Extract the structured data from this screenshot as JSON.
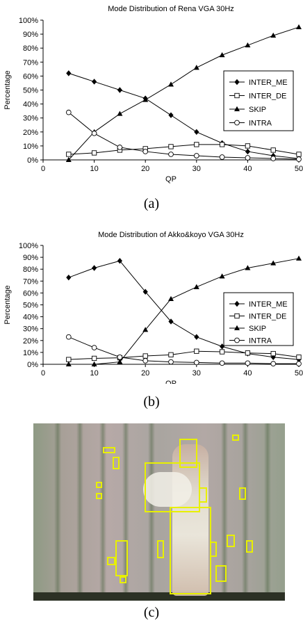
{
  "chart_data": [
    {
      "type": "line",
      "title": "Mode Distribution of Rena VGA 30Hz",
      "xlabel": "QP",
      "ylabel": "Percentage",
      "xlim": [
        0,
        50
      ],
      "ylim": [
        0,
        100
      ],
      "x_ticks": [
        "0",
        "10",
        "20",
        "30",
        "40",
        "50"
      ],
      "y_ticks": [
        "0%",
        "10%",
        "20%",
        "30%",
        "40%",
        "50%",
        "60%",
        "70%",
        "80%",
        "90%",
        "100%"
      ],
      "grid": false,
      "legend": "right",
      "x": [
        5,
        10,
        15,
        20,
        25,
        30,
        35,
        40,
        45,
        50
      ],
      "series": [
        {
          "name": "INTER_ME",
          "marker": "diamond-filled",
          "values": [
            62,
            56,
            50,
            44,
            32,
            20,
            12,
            6,
            3,
            1
          ]
        },
        {
          "name": "INTER_DE",
          "marker": "square-open",
          "values": [
            4,
            5,
            7,
            8,
            9.5,
            11,
            11,
            10,
            7,
            4
          ]
        },
        {
          "name": "SKIP",
          "marker": "triangle-filled",
          "values": [
            0,
            20,
            33,
            43,
            54,
            66,
            75,
            82,
            89,
            95
          ]
        },
        {
          "name": "INTRA",
          "marker": "circle-open",
          "values": [
            34,
            19,
            9,
            6,
            4,
            3,
            2,
            1.5,
            1,
            0.5
          ]
        }
      ]
    },
    {
      "type": "line",
      "title": "Mode Distribution of Akko&koyo VGA 30Hz",
      "xlabel": "QP",
      "ylabel": "Percentage",
      "xlim": [
        0,
        50
      ],
      "ylim": [
        0,
        100
      ],
      "x_ticks": [
        "0",
        "10",
        "20",
        "30",
        "40",
        "50"
      ],
      "y_ticks": [
        "0%",
        "10%",
        "20%",
        "30%",
        "40%",
        "50%",
        "60%",
        "70%",
        "80%",
        "90%",
        "100%"
      ],
      "grid": false,
      "legend": "right",
      "x": [
        5,
        10,
        15,
        20,
        25,
        30,
        35,
        40,
        45,
        50
      ],
      "series": [
        {
          "name": "INTER_ME",
          "marker": "diamond-filled",
          "values": [
            73,
            81,
            87,
            61,
            36,
            23,
            15,
            9,
            6,
            4
          ]
        },
        {
          "name": "INTER_DE",
          "marker": "square-open",
          "values": [
            4,
            5,
            5.5,
            7,
            8,
            11,
            10.5,
            9.5,
            9,
            6
          ]
        },
        {
          "name": "SKIP",
          "marker": "triangle-filled",
          "values": [
            0,
            0,
            2,
            29,
            55,
            65,
            74,
            81,
            85,
            89
          ]
        },
        {
          "name": "INTRA",
          "marker": "circle-open",
          "values": [
            23,
            14,
            6,
            3,
            2,
            1.5,
            1,
            1,
            0.5,
            0.5
          ]
        }
      ]
    }
  ],
  "captions": {
    "a": "(a)",
    "b": "(b)",
    "c": "(c)"
  },
  "colors": {
    "line": "#000000",
    "highlight": "#e8f000"
  }
}
